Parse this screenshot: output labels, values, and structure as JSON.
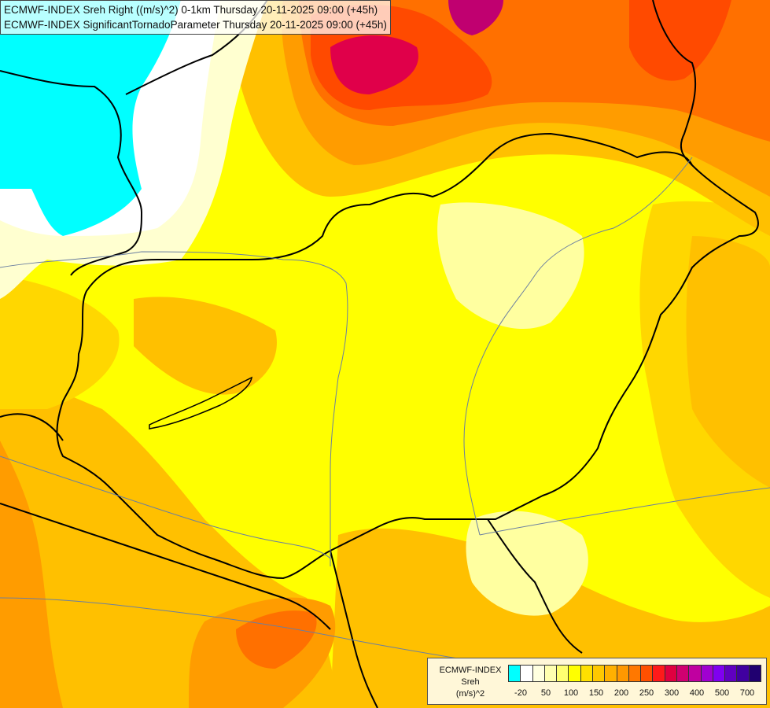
{
  "titles": {
    "line1": "ECMWF-INDEX Sreh Right ((m/s)^2) 0-1km Thursday 20-11-2025 09:00 (+45h)",
    "line2": "ECMWF-INDEX SignificantTornadoParameter Thursday 20-11-2025 09:00 (+45h)"
  },
  "legend": {
    "model": "ECMWF-INDEX",
    "variable": "Sreh",
    "unit": "(m/s)^2",
    "swatch_colors": [
      "#00ffff",
      "#ffffff",
      "#ffffe0",
      "#ffffb0",
      "#ffff70",
      "#ffff00",
      "#ffe000",
      "#ffc800",
      "#ffb000",
      "#ff9800",
      "#ff7800",
      "#ff5000",
      "#ff1a1a",
      "#e00040",
      "#d00070",
      "#c000a0",
      "#a000d0",
      "#8000f0",
      "#6000c0",
      "#4000a0",
      "#200070"
    ],
    "ticks": [
      "-20",
      "50",
      "100",
      "150",
      "200",
      "250",
      "300",
      "400",
      "500",
      "700"
    ]
  },
  "map": {
    "region": "Hungary and surrounding Central Europe",
    "colors": {
      "cyan": "#00ffff",
      "white": "#ffffff",
      "pale": "#ffffd0",
      "light_yellow": "#ffffa0",
      "yellow": "#ffff00",
      "gold": "#ffd700",
      "amber": "#ffc000",
      "orange": "#ff9c00",
      "dark_orange": "#ff7000",
      "red_orange": "#ff4a00",
      "crimson": "#e0004a",
      "magenta": "#c00070",
      "border": "#000000",
      "river": "#6b7fa0"
    }
  }
}
